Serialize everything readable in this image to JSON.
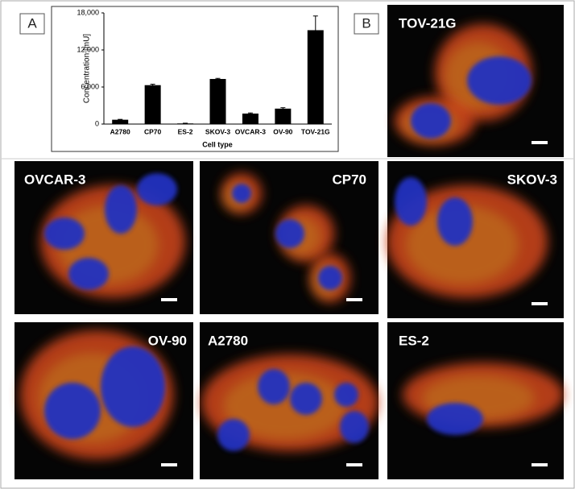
{
  "chart_data": {
    "type": "bar",
    "x_label": "Cell type",
    "y_label": "Concentration [mU]",
    "categories": [
      "A2780",
      "CP70",
      "ES-2",
      "SKOV-3",
      "OVCAR-3",
      "OV-90",
      "TOV-21G"
    ],
    "values": [
      700,
      6300,
      100,
      7300,
      1700,
      2500,
      15200
    ],
    "errors": [
      60,
      150,
      40,
      100,
      100,
      150,
      2300
    ],
    "color": "#000000",
    "ylim": [
      0,
      18000
    ],
    "yticks": [
      0,
      {
        "value": 6000,
        "label": "6,000"
      },
      {
        "value": 12000,
        "label": "12,000"
      },
      {
        "value": 18000,
        "label": "18,000"
      }
    ],
    "grid": false
  },
  "panel_labels": [
    "A",
    "B"
  ],
  "images": [
    "TOV-21G",
    "OVCAR-3",
    "CP70",
    "SKOV-3",
    "OV-90",
    "A2780",
    "ES-2"
  ]
}
